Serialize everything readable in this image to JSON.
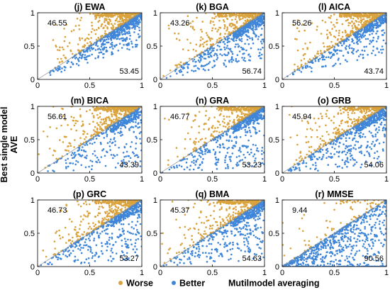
{
  "figure": {
    "ylabel_line1": "Best single model",
    "ylabel_line2": "AVE",
    "xlabel": "Mutilmodel averaging",
    "legend": [
      {
        "label": "Worse",
        "color": "#D9A23C"
      },
      {
        "label": "Better",
        "color": "#3F86D9"
      }
    ]
  },
  "chart_data": [
    {
      "type": "scatter",
      "title": "(j) EWA",
      "worse_pct": "46.55",
      "better_pct": "53.45",
      "xlim": [
        0,
        1
      ],
      "ylim": [
        0,
        1
      ],
      "xticks": [
        "0",
        "0.5",
        "1"
      ],
      "yticks": [
        "0",
        "0.5",
        "1"
      ],
      "worse_share": 0.4655,
      "better_spread": 0.25,
      "cloud_bias": 0.45
    },
    {
      "type": "scatter",
      "title": "(k) BGA",
      "worse_pct": "43.26",
      "better_pct": "56.74",
      "xlim": [
        0,
        1
      ],
      "ylim": [
        0,
        1
      ],
      "xticks": [
        "0",
        "0.5",
        "1"
      ],
      "yticks": [
        "0",
        "0.5",
        "1"
      ],
      "worse_share": 0.4326,
      "better_spread": 0.35,
      "cloud_bias": 0.5
    },
    {
      "type": "scatter",
      "title": "(l) AICA",
      "worse_pct": "56.26",
      "better_pct": "43.74",
      "xlim": [
        0,
        1
      ],
      "ylim": [
        0,
        1
      ],
      "xticks": [
        "0",
        "0.5",
        "1"
      ],
      "yticks": [
        "0",
        "0.5",
        "1"
      ],
      "worse_share": 0.5626,
      "better_spread": 0.3,
      "cloud_bias": 0.5
    },
    {
      "type": "scatter",
      "title": "(m) BICA",
      "worse_pct": "56.61",
      "better_pct": "43.39",
      "xlim": [
        0,
        1
      ],
      "ylim": [
        0,
        1
      ],
      "xticks": [
        "0",
        "0.5",
        "1"
      ],
      "yticks": [
        "0",
        "0.5",
        "1"
      ],
      "worse_share": 0.5661,
      "better_spread": 0.45,
      "cloud_bias": 0.5
    },
    {
      "type": "scatter",
      "title": "(n) GRA",
      "worse_pct": "46.77",
      "better_pct": "53.23",
      "xlim": [
        0,
        1
      ],
      "ylim": [
        0,
        1
      ],
      "xticks": [
        "0",
        "0.5",
        "1"
      ],
      "yticks": [
        "0",
        "0.5",
        "1"
      ],
      "worse_share": 0.4677,
      "better_spread": 0.45,
      "cloud_bias": 0.5
    },
    {
      "type": "scatter",
      "title": "(o) GRB",
      "worse_pct": "45.94",
      "better_pct": "54.06",
      "xlim": [
        0,
        1
      ],
      "ylim": [
        0,
        1
      ],
      "xticks": [
        "0",
        "0.5",
        "1"
      ],
      "yticks": [
        "0",
        "0.5",
        "1"
      ],
      "worse_share": 0.4594,
      "better_spread": 0.45,
      "cloud_bias": 0.5
    },
    {
      "type": "scatter",
      "title": "(p) GRC",
      "worse_pct": "46.73",
      "better_pct": "53.27",
      "xlim": [
        0,
        1
      ],
      "ylim": [
        0,
        1
      ],
      "xticks": [
        "0",
        "0.5",
        "1"
      ],
      "yticks": [
        "0",
        "0.5",
        "1"
      ],
      "worse_share": 0.4673,
      "better_spread": 0.45,
      "cloud_bias": 0.5
    },
    {
      "type": "scatter",
      "title": "(q) BMA",
      "worse_pct": "45.37",
      "better_pct": "54.63",
      "xlim": [
        0,
        1
      ],
      "ylim": [
        0,
        1
      ],
      "xticks": [
        "0",
        "0.5",
        "1"
      ],
      "yticks": [
        "0",
        "0.5",
        "1"
      ],
      "worse_share": 0.4537,
      "better_spread": 0.45,
      "cloud_bias": 0.5
    },
    {
      "type": "scatter",
      "title": "(r) MMSE",
      "worse_pct": "9.44",
      "better_pct": "90.56",
      "xlim": [
        0,
        1
      ],
      "ylim": [
        0,
        1
      ],
      "xticks": [
        "0",
        "0.5",
        "1"
      ],
      "yticks": [
        "0",
        "0.5",
        "1"
      ],
      "worse_share": 0.0944,
      "better_spread": 0.9,
      "cloud_bias": 0.85
    }
  ]
}
